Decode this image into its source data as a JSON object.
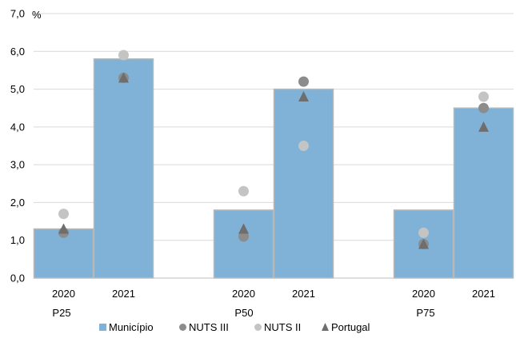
{
  "chart_data": {
    "type": "bar",
    "unit_label": "%",
    "ylim": [
      0,
      7
    ],
    "y_ticks": [
      "0,0",
      "1,0",
      "2,0",
      "3,0",
      "4,0",
      "5,0",
      "6,0",
      "7,0"
    ],
    "grid": true,
    "legend_position": "bottom",
    "groups": [
      {
        "label": "P25",
        "categories": [
          "2020",
          "2021"
        ]
      },
      {
        "label": "P50",
        "categories": [
          "2020",
          "2021"
        ]
      },
      {
        "label": "P75",
        "categories": [
          "2020",
          "2021"
        ]
      }
    ],
    "series": [
      {
        "name": "Município",
        "kind": "bar",
        "marker": "square",
        "color": "#7fb2d6",
        "values": [
          1.3,
          5.8,
          1.8,
          5.0,
          1.8,
          4.5
        ]
      },
      {
        "name": "NUTS III",
        "kind": "marker",
        "marker": "circle",
        "color": "#8c8c8c",
        "values": [
          1.2,
          5.3,
          1.1,
          5.2,
          0.9,
          4.5
        ]
      },
      {
        "name": "NUTS II",
        "kind": "marker",
        "marker": "circle",
        "color": "#c4c4c4",
        "values": [
          1.7,
          5.9,
          2.3,
          3.5,
          1.2,
          4.8
        ]
      },
      {
        "name": "Portugal",
        "kind": "marker",
        "marker": "triangle",
        "color": "#6e6e6e",
        "values": [
          1.3,
          5.3,
          1.3,
          4.8,
          0.9,
          4.0
        ]
      }
    ]
  }
}
